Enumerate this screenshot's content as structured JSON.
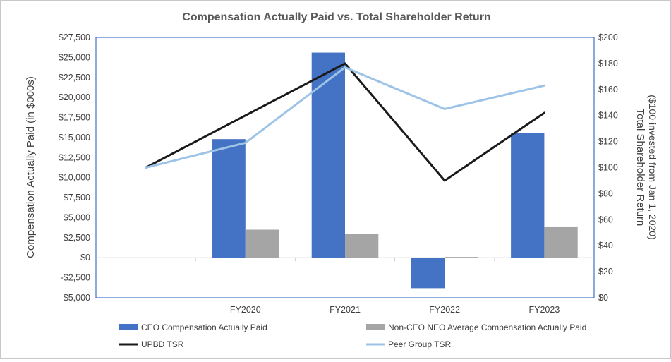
{
  "chart_data": {
    "type": "bar",
    "title": "Compensation Actually Paid vs. Total Shareholder Return",
    "categories": [
      "",
      "FY2020",
      "FY2021",
      "FY2022",
      "FY2023"
    ],
    "ylabel": "Compensation Actually Paid (in $000s)",
    "y2label_line1": "Total Shareholder Return",
    "y2label_line2": "($100 invested from Jan 1, 2020)",
    "ylim": [
      -5000,
      27500
    ],
    "y2lim": [
      0,
      200
    ],
    "yticks": [
      {
        "v": 27500,
        "label": "$27,500"
      },
      {
        "v": 25000,
        "label": "$25,000"
      },
      {
        "v": 22500,
        "label": "$22,500"
      },
      {
        "v": 20000,
        "label": "$20,000"
      },
      {
        "v": 17500,
        "label": "$17,500"
      },
      {
        "v": 15000,
        "label": "$15,000"
      },
      {
        "v": 12500,
        "label": "$12,500"
      },
      {
        "v": 10000,
        "label": "$10,000"
      },
      {
        "v": 7500,
        "label": "$7,500"
      },
      {
        "v": 5000,
        "label": "$5,000"
      },
      {
        "v": 2500,
        "label": "$2,500"
      },
      {
        "v": 0,
        "label": "$0"
      },
      {
        "v": -2500,
        "label": "-$2,500"
      },
      {
        "v": -5000,
        "label": "-$5,000"
      }
    ],
    "y2ticks": [
      {
        "v": 200,
        "label": "$200"
      },
      {
        "v": 180,
        "label": "$180"
      },
      {
        "v": 160,
        "label": "$160"
      },
      {
        "v": 140,
        "label": "$140"
      },
      {
        "v": 120,
        "label": "$120"
      },
      {
        "v": 100,
        "label": "$100"
      },
      {
        "v": 80,
        "label": "$80"
      },
      {
        "v": 60,
        "label": "$60"
      },
      {
        "v": 40,
        "label": "$40"
      },
      {
        "v": 20,
        "label": "$20"
      },
      {
        "v": 0,
        "label": "$0"
      }
    ],
    "bar_series": [
      {
        "key": "ceo",
        "name": "CEO Compensation Actually Paid",
        "color": "#4472c4",
        "values": [
          null,
          14800,
          25600,
          -3800,
          15600
        ]
      },
      {
        "key": "neo",
        "name": "Non-CEO NEO Average Compensation Actually Paid",
        "color": "#a5a5a5",
        "values": [
          null,
          3500,
          2950,
          100,
          3900
        ]
      }
    ],
    "line_series": [
      {
        "key": "upbd",
        "name": "UPBD TSR",
        "color": "#1a1a1a",
        "values": [
          100,
          140,
          180,
          90,
          142
        ]
      },
      {
        "key": "peer",
        "name": "Peer Group TSR",
        "color": "#9dc3e6",
        "values": [
          100,
          119,
          177,
          145,
          163
        ]
      }
    ],
    "legend_position": "bottom"
  }
}
